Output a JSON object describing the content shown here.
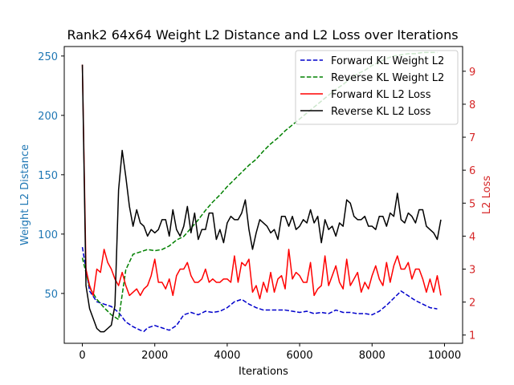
{
  "chart_data": {
    "type": "line",
    "title": "Rank2 64x64 Weight L2 Distance and L2 Loss over Iterations",
    "xlabel": "Iterations",
    "ylabel_left": "Weight L2 Distance",
    "ylabel_right": "L2 Loss",
    "xlim": [
      -500,
      10500
    ],
    "ylim_left": [
      8,
      258
    ],
    "ylim_right": [
      0.75,
      9.75
    ],
    "x_ticks": [
      0,
      2000,
      4000,
      6000,
      8000,
      10000
    ],
    "y_left_ticks": [
      50,
      100,
      150,
      200,
      250
    ],
    "y_right_ticks": [
      1,
      2,
      3,
      4,
      5,
      6,
      7,
      8,
      9
    ],
    "grid": false,
    "legend_position": "top-right",
    "colors": {
      "left_axis": "#1f77b4",
      "right_axis": "#d62728"
    },
    "series": [
      {
        "name": "Forward KL Weight L2",
        "axis": "left",
        "color": "#0000cc",
        "style": "dashed",
        "x": [
          0,
          200,
          400,
          600,
          800,
          1000,
          1200,
          1400,
          1600,
          1700,
          1800,
          2000,
          2200,
          2400,
          2600,
          2800,
          3000,
          3200,
          3400,
          3600,
          3800,
          4000,
          4200,
          4400,
          4600,
          4800,
          5000,
          5200,
          5400,
          5600,
          5800,
          6000,
          6200,
          6400,
          6600,
          6800,
          7000,
          7200,
          7400,
          7600,
          7800,
          8000,
          8200,
          8400,
          8600,
          8800,
          9000,
          9200,
          9400,
          9600,
          9800
        ],
        "y": [
          89,
          52,
          43,
          41,
          39,
          34,
          26,
          22,
          19,
          18,
          21,
          23,
          21,
          19,
          23,
          32,
          34,
          32,
          35,
          34,
          35,
          38,
          43,
          45,
          41,
          38,
          36,
          36,
          36,
          36,
          35,
          34,
          35,
          33,
          34,
          33,
          36,
          34,
          34,
          33,
          33,
          32,
          35,
          40,
          46,
          52,
          48,
          44,
          41,
          38,
          37
        ]
      },
      {
        "name": "Reverse KL Weight L2",
        "axis": "left",
        "color": "#008000",
        "style": "dashed",
        "x": [
          0,
          200,
          400,
          600,
          800,
          1000,
          1200,
          1400,
          1600,
          1800,
          2000,
          2200,
          2400,
          2600,
          2800,
          3000,
          3200,
          3400,
          3600,
          3800,
          4000,
          4200,
          4400,
          4600,
          4800,
          5000,
          5200,
          5400,
          5600,
          5800,
          6000,
          6200,
          6400,
          6600,
          6800,
          7000,
          7200,
          7400,
          7600,
          7800,
          8000,
          8200,
          8400,
          8600,
          8800,
          9000,
          9200,
          9400,
          9600,
          9800
        ],
        "y": [
          80,
          55,
          45,
          38,
          32,
          28,
          70,
          83,
          85,
          87,
          86,
          87,
          90,
          95,
          98,
          105,
          112,
          120,
          127,
          133,
          140,
          146,
          152,
          158,
          163,
          170,
          176,
          181,
          187,
          192,
          197,
          202,
          207,
          212,
          217,
          222,
          226,
          231,
          235,
          238,
          242,
          245,
          248,
          250,
          251,
          252,
          252,
          253,
          253,
          253
        ]
      },
      {
        "name": "Forward KL L2 Loss",
        "axis": "right",
        "color": "#ff0000",
        "style": "solid",
        "x": [
          0,
          100,
          200,
          300,
          400,
          500,
          600,
          700,
          800,
          900,
          1000,
          1100,
          1200,
          1300,
          1400,
          1500,
          1600,
          1700,
          1800,
          1900,
          2000,
          2100,
          2200,
          2300,
          2400,
          2500,
          2600,
          2700,
          2800,
          2900,
          3000,
          3100,
          3200,
          3300,
          3400,
          3500,
          3600,
          3700,
          3800,
          3900,
          4000,
          4100,
          4200,
          4300,
          4400,
          4500,
          4600,
          4700,
          4800,
          4900,
          5000,
          5100,
          5200,
          5300,
          5400,
          5500,
          5600,
          5700,
          5800,
          5900,
          6000,
          6100,
          6200,
          6300,
          6400,
          6500,
          6600,
          6700,
          6800,
          6900,
          7000,
          7100,
          7200,
          7300,
          7400,
          7500,
          7600,
          7700,
          7800,
          7900,
          8000,
          8100,
          8200,
          8300,
          8400,
          8500,
          8600,
          8700,
          8800,
          8900,
          9000,
          9100,
          9200,
          9300,
          9400,
          9500,
          9600,
          9700,
          9800,
          9900
        ],
        "y": [
          9.2,
          3.0,
          2.5,
          2.2,
          3.0,
          2.9,
          3.6,
          3.2,
          3.0,
          2.7,
          2.5,
          2.9,
          2.5,
          2.2,
          2.3,
          2.4,
          2.2,
          2.4,
          2.5,
          2.8,
          3.3,
          2.6,
          2.6,
          2.4,
          2.7,
          2.2,
          2.8,
          3.0,
          3.0,
          3.2,
          2.8,
          2.6,
          2.6,
          2.7,
          3.0,
          2.6,
          2.7,
          2.6,
          2.6,
          2.7,
          2.7,
          2.6,
          3.4,
          2.6,
          3.2,
          3.1,
          3.3,
          2.3,
          2.5,
          2.1,
          2.6,
          2.3,
          2.9,
          2.3,
          2.7,
          2.8,
          2.4,
          3.6,
          2.7,
          2.9,
          2.8,
          2.6,
          2.6,
          3.2,
          2.2,
          2.4,
          2.5,
          3.4,
          2.5,
          2.8,
          3.1,
          2.6,
          2.4,
          3.3,
          2.5,
          2.7,
          2.9,
          2.3,
          2.6,
          2.4,
          2.8,
          3.1,
          2.7,
          2.5,
          3.2,
          2.6,
          3.1,
          3.4,
          3.0,
          3.0,
          3.2,
          2.7,
          3.0,
          3.0,
          2.7,
          2.3,
          2.7,
          2.3,
          2.8,
          2.2
        ],
        "ylabel": ""
      },
      {
        "name": "Reverse KL L2 Loss",
        "axis": "right",
        "color": "#000000",
        "style": "solid",
        "x": [
          0,
          100,
          200,
          300,
          400,
          500,
          600,
          700,
          800,
          900,
          1000,
          1100,
          1200,
          1300,
          1400,
          1500,
          1600,
          1700,
          1800,
          1900,
          2000,
          2100,
          2200,
          2300,
          2400,
          2500,
          2600,
          2700,
          2800,
          2900,
          3000,
          3100,
          3200,
          3300,
          3400,
          3500,
          3600,
          3700,
          3800,
          3900,
          4000,
          4100,
          4200,
          4300,
          4400,
          4500,
          4600,
          4700,
          4800,
          4900,
          5000,
          5100,
          5200,
          5300,
          5400,
          5500,
          5600,
          5700,
          5800,
          5900,
          6000,
          6100,
          6200,
          6300,
          6400,
          6500,
          6600,
          6700,
          6800,
          6900,
          7000,
          7100,
          7200,
          7300,
          7400,
          7500,
          7600,
          7700,
          7800,
          7900,
          8000,
          8100,
          8200,
          8300,
          8400,
          8500,
          8600,
          8700,
          8800,
          8900,
          9000,
          9100,
          9200,
          9300,
          9400,
          9500,
          9600,
          9700,
          9800,
          9900
        ],
        "y": [
          9.2,
          2.5,
          1.8,
          1.5,
          1.2,
          1.1,
          1.1,
          1.2,
          1.3,
          1.9,
          5.4,
          6.6,
          5.8,
          4.9,
          4.3,
          4.8,
          4.4,
          4.3,
          4.0,
          4.2,
          4.1,
          4.2,
          4.5,
          4.5,
          4.0,
          4.8,
          4.2,
          4.0,
          4.3,
          4.9,
          4.1,
          4.7,
          3.9,
          4.2,
          4.2,
          4.7,
          4.7,
          3.9,
          4.2,
          3.8,
          4.4,
          4.6,
          4.5,
          4.5,
          4.7,
          5.1,
          4.2,
          3.6,
          4.1,
          4.5,
          4.4,
          4.3,
          4.1,
          4.2,
          3.9,
          4.6,
          4.6,
          4.3,
          4.6,
          4.2,
          4.3,
          4.5,
          4.4,
          4.8,
          4.4,
          4.6,
          3.8,
          4.5,
          4.2,
          4.3,
          4.0,
          4.4,
          4.3,
          5.1,
          5.0,
          4.6,
          4.5,
          4.5,
          4.6,
          4.3,
          4.3,
          4.2,
          4.6,
          4.6,
          4.3,
          4.7,
          4.6,
          5.3,
          4.5,
          4.4,
          4.7,
          4.6,
          4.4,
          4.8,
          4.8,
          4.3,
          4.2,
          4.1,
          3.9,
          4.5
        ]
      }
    ]
  }
}
